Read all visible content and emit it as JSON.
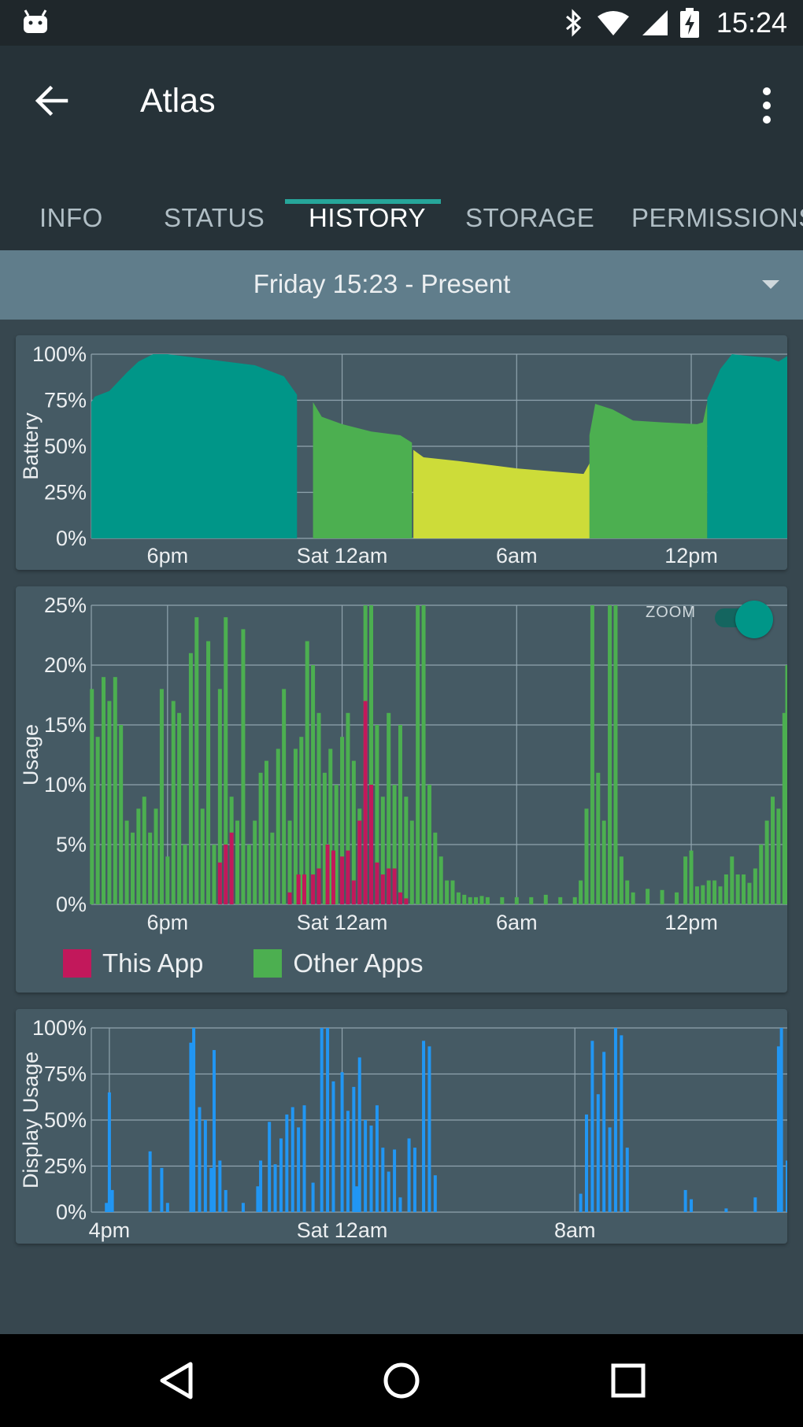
{
  "status_bar": {
    "time": "15:24",
    "icons": [
      "android-icon",
      "bluetooth-icon",
      "wifi-icon",
      "signal-icon",
      "battery-charging-icon"
    ]
  },
  "app_bar": {
    "title": "Atlas",
    "back_icon": "arrow-back-icon",
    "menu_icon": "more-vert-icon"
  },
  "tabs": [
    {
      "label": "INFO"
    },
    {
      "label": "STATUS"
    },
    {
      "label": "HISTORY",
      "active": true
    },
    {
      "label": "STORAGE"
    },
    {
      "label": "PERMISSIONS"
    }
  ],
  "range": {
    "label": "Friday 15:23 - Present",
    "icon": "dropdown-arrow-icon"
  },
  "zoom": {
    "label": "ZOOM",
    "on": true
  },
  "legend": [
    {
      "label": "This App",
      "color": "#c2185b"
    },
    {
      "label": "Other Apps",
      "color": "#4caf50"
    }
  ],
  "colors": {
    "accent": "#26a69a",
    "teal": "#009688",
    "green": "#4caf50",
    "lime": "#cddc39",
    "magenta": "#c2185b",
    "blue": "#2196f3"
  },
  "chart_data": [
    {
      "type": "area",
      "ylabel": "Battery",
      "yticks": [
        "0%",
        "25%",
        "50%",
        "75%",
        "100%"
      ],
      "xticks": [
        {
          "label": "6pm",
          "hour": 18
        },
        {
          "label": "Sat 12am",
          "hour": 24
        },
        {
          "label": "6am",
          "hour": 30
        },
        {
          "label": "12pm",
          "hour": 36
        }
      ],
      "x_start_hour": 15.38,
      "x_end_hour": 39.3,
      "ylim": [
        0,
        100
      ],
      "series": [
        {
          "color": "#009688",
          "points": [
            [
              15.38,
              74
            ],
            [
              15.5,
              77
            ],
            [
              16,
              80
            ],
            [
              16.6,
              90
            ],
            [
              17,
              96
            ],
            [
              17.5,
              100
            ],
            [
              18,
              100
            ],
            [
              19,
              98
            ],
            [
              20,
              96
            ],
            [
              21,
              94
            ],
            [
              22,
              88
            ],
            [
              22.45,
              78
            ]
          ]
        },
        {
          "color": "#4caf50",
          "points": [
            [
              23,
              74
            ],
            [
              23.3,
              66
            ],
            [
              24,
              62
            ],
            [
              25,
              58
            ],
            [
              26,
              56
            ],
            [
              26.4,
              52
            ]
          ]
        },
        {
          "color": "#cddc39",
          "points": [
            [
              26.45,
              48
            ],
            [
              26.8,
              44
            ],
            [
              28,
              42
            ],
            [
              30,
              38
            ],
            [
              31.5,
              36
            ],
            [
              32.3,
              35
            ],
            [
              32.55,
              42
            ]
          ]
        },
        {
          "color": "#4caf50",
          "points": [
            [
              32.5,
              56
            ],
            [
              32.7,
              73
            ],
            [
              33.3,
              70
            ],
            [
              34,
              64
            ],
            [
              35,
              63
            ],
            [
              36.2,
              62
            ],
            [
              36.4,
              63
            ],
            [
              36.55,
              74
            ]
          ]
        },
        {
          "color": "#009688",
          "points": [
            [
              36.55,
              76
            ],
            [
              37,
              92
            ],
            [
              37.4,
              100
            ],
            [
              38,
              99
            ],
            [
              38.7,
              98
            ],
            [
              39,
              96
            ],
            [
              39.3,
              99
            ]
          ]
        }
      ]
    },
    {
      "type": "bar",
      "ylabel": "Usage",
      "yticks": [
        "0%",
        "5%",
        "10%",
        "15%",
        "20%",
        "25%"
      ],
      "xticks": [
        {
          "label": "6pm",
          "hour": 18
        },
        {
          "label": "Sat 12am",
          "hour": 24
        },
        {
          "label": "6am",
          "hour": 30
        },
        {
          "label": "12pm",
          "hour": 36
        }
      ],
      "x_start_hour": 15.38,
      "x_end_hour": 39.3,
      "ylim": [
        0,
        25
      ],
      "series": [
        {
          "name": "Other Apps",
          "color": "#4caf50",
          "bars": [
            [
              15.4,
              18
            ],
            [
              15.6,
              14
            ],
            [
              15.8,
              19
            ],
            [
              16,
              17
            ],
            [
              16.2,
              19
            ],
            [
              16.4,
              15
            ],
            [
              16.6,
              7
            ],
            [
              16.8,
              6
            ],
            [
              17,
              8
            ],
            [
              17.2,
              9
            ],
            [
              17.4,
              6
            ],
            [
              17.6,
              8
            ],
            [
              17.8,
              18
            ],
            [
              18,
              4
            ],
            [
              18.2,
              17
            ],
            [
              18.4,
              16
            ],
            [
              18.6,
              5
            ],
            [
              18.8,
              21
            ],
            [
              19,
              24
            ],
            [
              19.2,
              8
            ],
            [
              19.4,
              22
            ],
            [
              19.6,
              5
            ],
            [
              19.8,
              18
            ],
            [
              20,
              24
            ],
            [
              20.2,
              9
            ],
            [
              20.4,
              7
            ],
            [
              20.6,
              23
            ],
            [
              20.8,
              5
            ],
            [
              21,
              7
            ],
            [
              21.2,
              11
            ],
            [
              21.4,
              12
            ],
            [
              21.6,
              6
            ],
            [
              21.8,
              13
            ],
            [
              22,
              18
            ],
            [
              22.2,
              7
            ],
            [
              22.4,
              13
            ],
            [
              22.6,
              14
            ],
            [
              22.8,
              22
            ],
            [
              23,
              20
            ],
            [
              23.2,
              16
            ],
            [
              23.4,
              11
            ],
            [
              23.6,
              13
            ],
            [
              23.8,
              10
            ],
            [
              24,
              14
            ],
            [
              24.2,
              16
            ],
            [
              24.4,
              12
            ],
            [
              24.6,
              8
            ],
            [
              24.8,
              25
            ],
            [
              25,
              25
            ],
            [
              25.2,
              15
            ],
            [
              25.4,
              9
            ],
            [
              25.6,
              16
            ],
            [
              25.8,
              10
            ],
            [
              26,
              15
            ],
            [
              26.2,
              9
            ],
            [
              26.4,
              7
            ],
            [
              26.6,
              25
            ],
            [
              26.8,
              25
            ],
            [
              27,
              10
            ],
            [
              27.2,
              6
            ],
            [
              27.4,
              4
            ],
            [
              27.6,
              2
            ],
            [
              27.8,
              2
            ],
            [
              28,
              1
            ],
            [
              28.2,
              0.8
            ],
            [
              28.4,
              0.6
            ],
            [
              28.6,
              0.6
            ],
            [
              28.8,
              0.7
            ],
            [
              29,
              0.6
            ],
            [
              29.5,
              0.6
            ],
            [
              30,
              0.6
            ],
            [
              30.5,
              0.6
            ],
            [
              31,
              0.8
            ],
            [
              31.5,
              0.6
            ],
            [
              32,
              0.6
            ],
            [
              32.2,
              2
            ],
            [
              32.4,
              8
            ],
            [
              32.6,
              25
            ],
            [
              32.8,
              11
            ],
            [
              33,
              7
            ],
            [
              33.2,
              25
            ],
            [
              33.4,
              25
            ],
            [
              33.6,
              4
            ],
            [
              33.8,
              2
            ],
            [
              34,
              1
            ],
            [
              34.5,
              1.3
            ],
            [
              35,
              1.2
            ],
            [
              35.5,
              1
            ],
            [
              35.8,
              4
            ],
            [
              36,
              4.5
            ],
            [
              36.2,
              1.5
            ],
            [
              36.4,
              1.6
            ],
            [
              36.6,
              2
            ],
            [
              36.8,
              2
            ],
            [
              37,
              1.5
            ],
            [
              37.2,
              2.5
            ],
            [
              37.4,
              4
            ],
            [
              37.6,
              2.5
            ],
            [
              37.8,
              2.5
            ],
            [
              38,
              1.8
            ],
            [
              38.2,
              3
            ],
            [
              38.4,
              5
            ],
            [
              38.6,
              7
            ],
            [
              38.8,
              9
            ],
            [
              39,
              8
            ],
            [
              39.2,
              16
            ],
            [
              39.3,
              20
            ]
          ]
        },
        {
          "name": "This App",
          "color": "#c2185b",
          "bars": [
            [
              19.8,
              3.5
            ],
            [
              20,
              5
            ],
            [
              20.2,
              6
            ],
            [
              22.2,
              1
            ],
            [
              22.5,
              2.5
            ],
            [
              22.7,
              2.5
            ],
            [
              23,
              2.5
            ],
            [
              23.2,
              3
            ],
            [
              23.5,
              5
            ],
            [
              23.7,
              4.5
            ],
            [
              24,
              4
            ],
            [
              24.2,
              4.5
            ],
            [
              24.4,
              2
            ],
            [
              24.6,
              7
            ],
            [
              24.8,
              17
            ],
            [
              25,
              10
            ],
            [
              25.2,
              3.5
            ],
            [
              25.4,
              2.5
            ],
            [
              25.6,
              3
            ],
            [
              25.8,
              3
            ],
            [
              26,
              1
            ],
            [
              26.2,
              0.5
            ]
          ]
        }
      ]
    },
    {
      "type": "bar",
      "ylabel": "Display Usage",
      "yticks": [
        "0%",
        "25%",
        "50%",
        "75%",
        "100%"
      ],
      "xticks": [
        {
          "label": "4pm",
          "hour": 16
        },
        {
          "label": "Sat 12am",
          "hour": 24
        },
        {
          "label": "8am",
          "hour": 32
        }
      ],
      "x_start_hour": 15.38,
      "x_end_hour": 39.3,
      "ylim": [
        0,
        100
      ],
      "series": [
        {
          "name": "Display",
          "color": "#2196f3",
          "bars": [
            [
              15.9,
              5
            ],
            [
              16,
              65
            ],
            [
              16.1,
              12
            ],
            [
              17.4,
              33
            ],
            [
              17.8,
              24
            ],
            [
              18,
              5
            ],
            [
              18.8,
              92
            ],
            [
              18.9,
              100
            ],
            [
              19.1,
              57
            ],
            [
              19.3,
              50
            ],
            [
              19.5,
              24
            ],
            [
              19.6,
              88
            ],
            [
              19.8,
              28
            ],
            [
              20,
              12
            ],
            [
              20.6,
              5
            ],
            [
              21.1,
              14
            ],
            [
              21.2,
              28
            ],
            [
              21.5,
              49
            ],
            [
              21.7,
              26
            ],
            [
              21.9,
              40
            ],
            [
              22.1,
              53
            ],
            [
              22.3,
              57
            ],
            [
              22.5,
              46
            ],
            [
              22.7,
              58
            ],
            [
              23,
              16
            ],
            [
              23.3,
              100
            ],
            [
              23.5,
              100
            ],
            [
              23.7,
              71
            ],
            [
              24,
              76
            ],
            [
              24.2,
              55
            ],
            [
              24.4,
              68
            ],
            [
              24.5,
              14
            ],
            [
              24.6,
              84
            ],
            [
              24.8,
              50
            ],
            [
              25,
              47
            ],
            [
              25.2,
              58
            ],
            [
              25.4,
              35
            ],
            [
              25.6,
              22
            ],
            [
              25.8,
              34
            ],
            [
              26,
              8
            ],
            [
              26.3,
              40
            ],
            [
              26.5,
              35
            ],
            [
              26.8,
              93
            ],
            [
              27,
              90
            ],
            [
              27.2,
              20
            ],
            [
              32.2,
              10
            ],
            [
              32.4,
              53
            ],
            [
              32.6,
              93
            ],
            [
              32.8,
              64
            ],
            [
              33,
              87
            ],
            [
              33.2,
              46
            ],
            [
              33.4,
              100
            ],
            [
              33.6,
              96
            ],
            [
              33.8,
              35
            ],
            [
              35.8,
              12
            ],
            [
              36,
              7
            ],
            [
              37.2,
              2
            ],
            [
              38.2,
              8
            ],
            [
              39,
              90
            ],
            [
              39.1,
              100
            ],
            [
              39.3,
              28
            ]
          ]
        }
      ]
    }
  ]
}
